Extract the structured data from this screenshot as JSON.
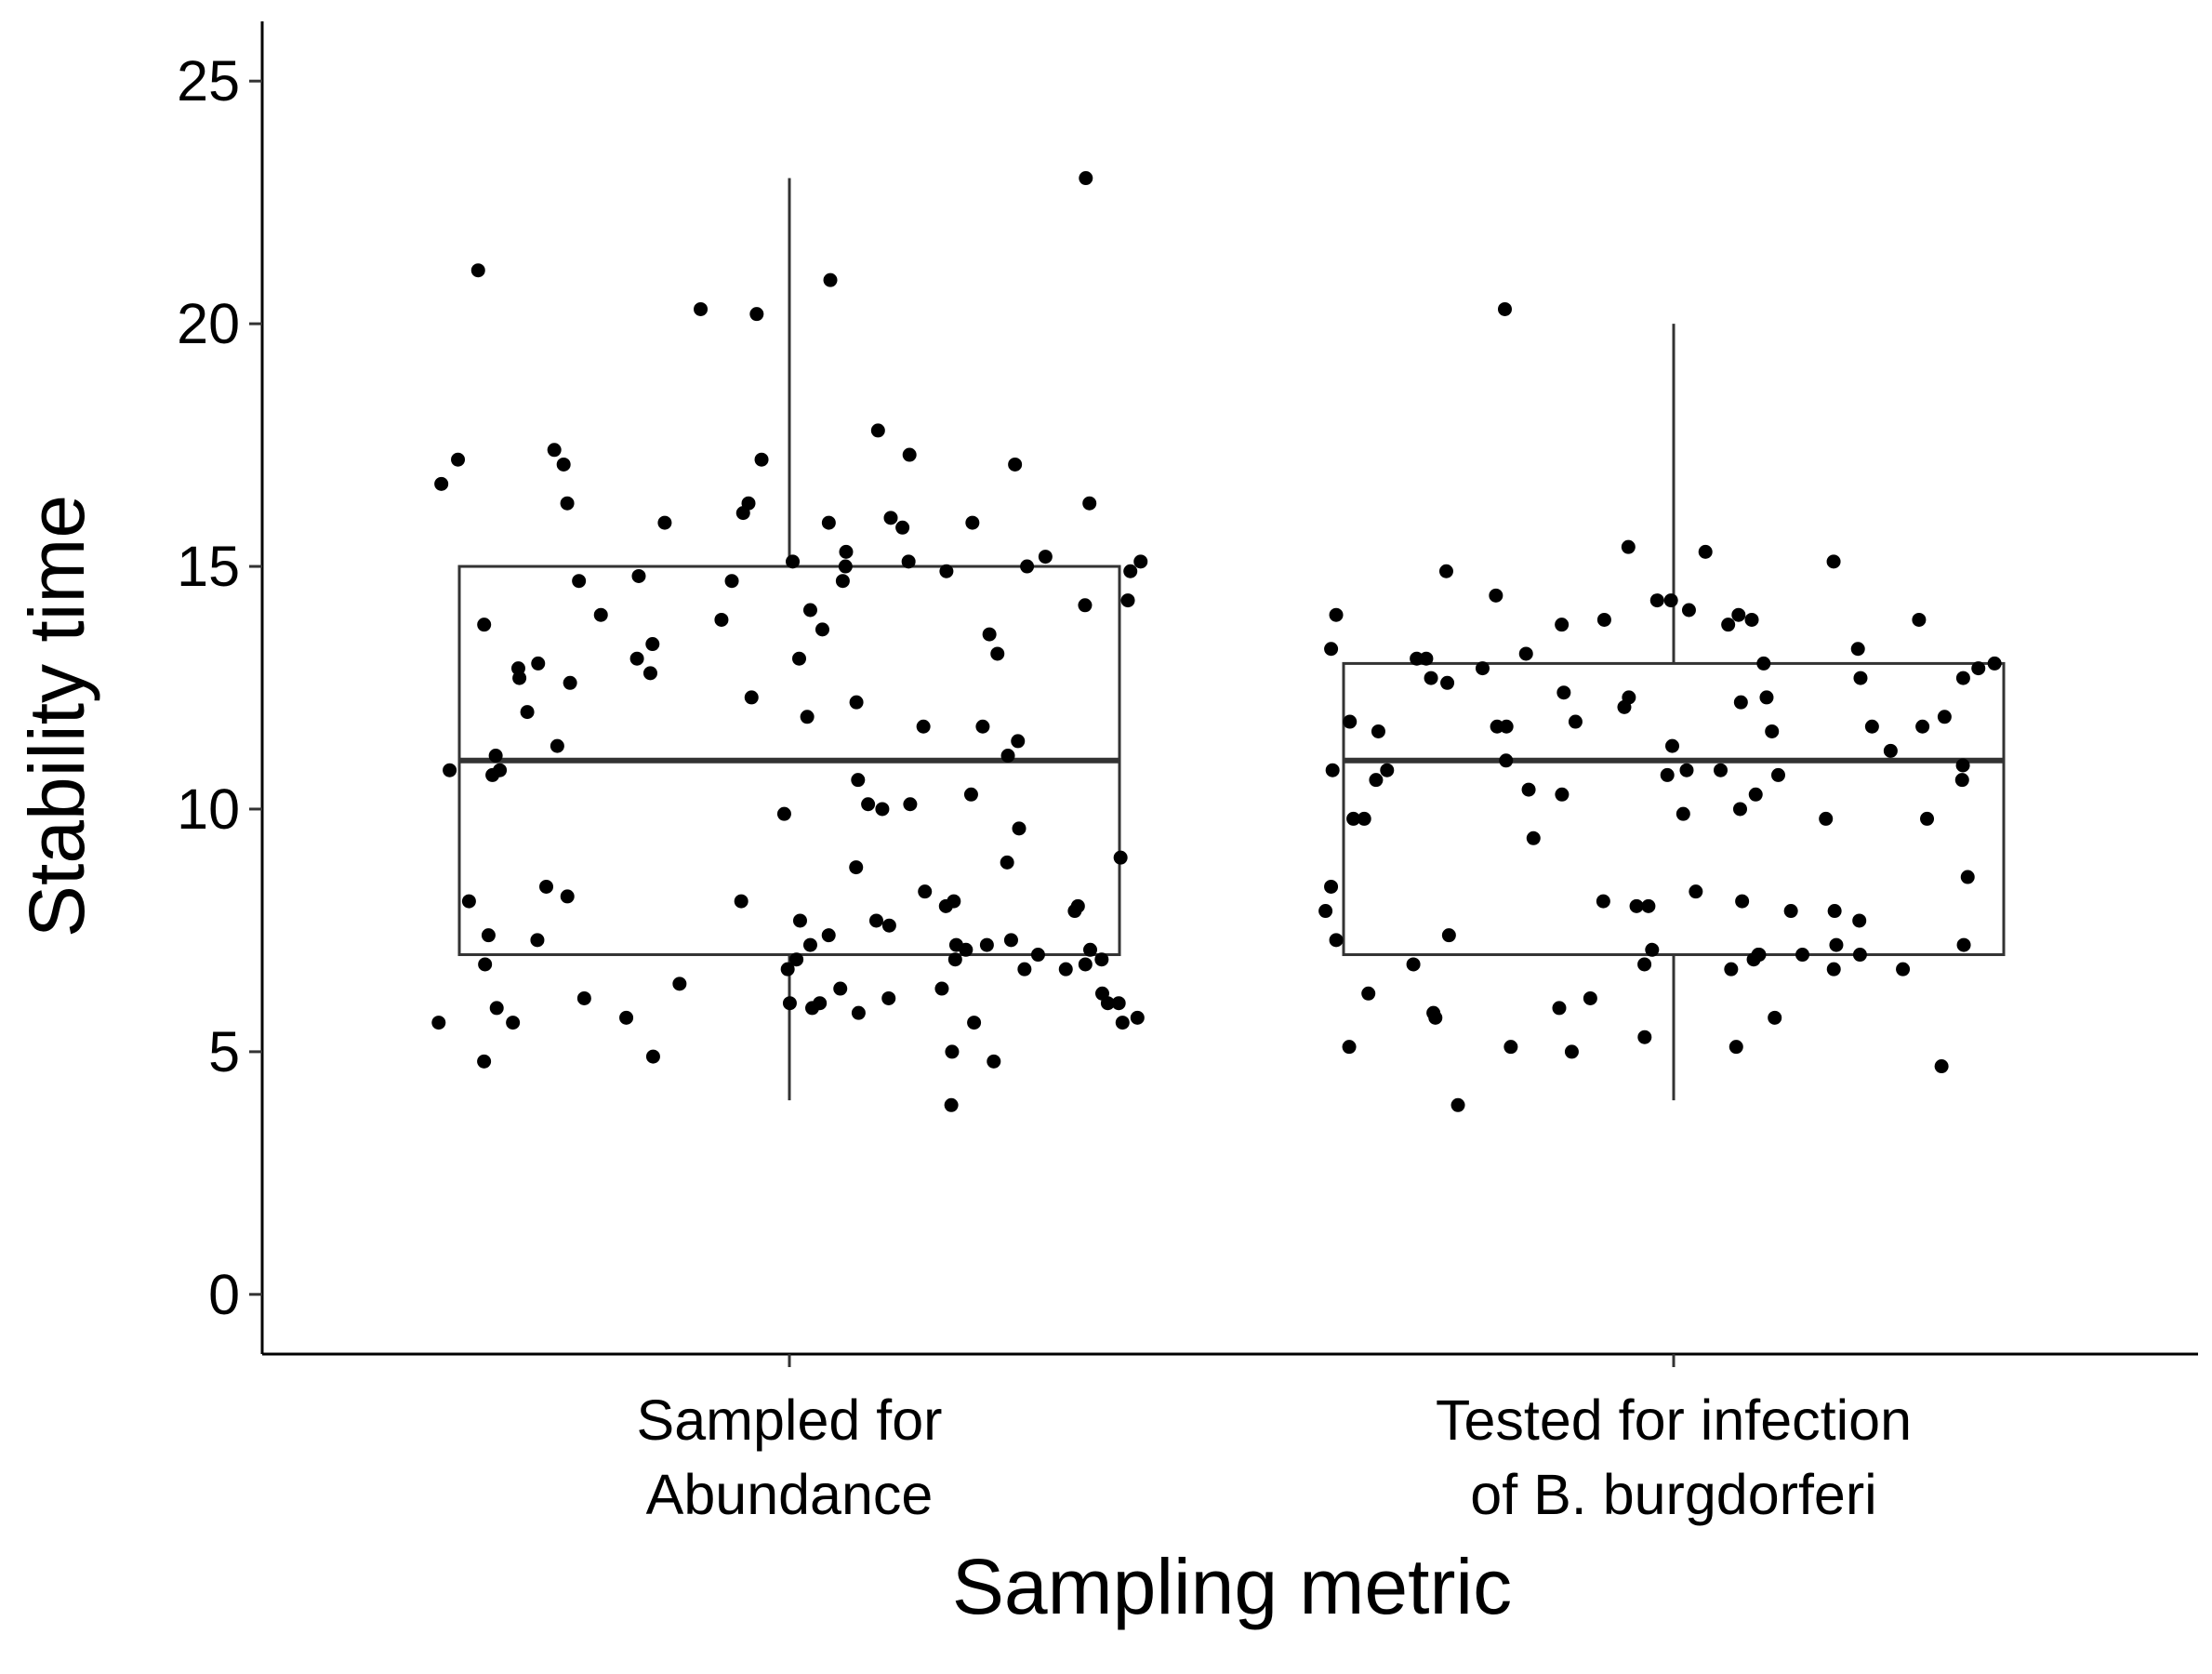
{
  "chart_data": {
    "type": "box",
    "x_label": "Sampling metric",
    "y_label": "Stability time",
    "categories": [
      "Sampled for\nAbundance",
      "Tested for infection\nof B. burgdorferi"
    ],
    "boxes": [
      {
        "min": 4,
        "q1": 7,
        "median": 11,
        "q3": 15,
        "max": 23
      },
      {
        "min": 4,
        "q1": 7,
        "median": 11,
        "q3": 13,
        "max": 20
      }
    ],
    "points": [
      [
        23.0,
        21.1,
        20.9,
        20.3,
        20.2,
        17.8,
        17.4,
        17.3,
        17.2,
        17.2,
        17.1,
        17.1,
        16.7,
        16.3,
        16.3,
        16.3,
        16.1,
        16.0,
        15.9,
        15.9,
        15.9,
        15.8,
        15.3,
        15.2,
        15.1,
        15.1,
        15.1,
        15.0,
        15.0,
        14.9,
        14.9,
        14.8,
        14.7,
        14.7,
        14.7,
        14.3,
        14.2,
        14.1,
        14.0,
        13.9,
        13.8,
        13.7,
        13.6,
        13.4,
        13.2,
        13.1,
        13.1,
        13.0,
        12.9,
        12.8,
        12.7,
        12.6,
        12.3,
        12.2,
        12.0,
        11.9,
        11.7,
        11.7,
        11.4,
        11.3,
        11.1,
        11.1,
        10.8,
        10.8,
        10.7,
        10.6,
        10.3,
        10.1,
        10.1,
        10.0,
        9.9,
        9.6,
        9.0,
        8.9,
        8.8,
        8.4,
        8.3,
        8.2,
        8.1,
        8.1,
        8.1,
        8.0,
        8.0,
        7.9,
        7.7,
        7.7,
        7.6,
        7.4,
        7.4,
        7.3,
        7.3,
        7.2,
        7.2,
        7.2,
        7.1,
        7.1,
        7.0,
        6.9,
        6.9,
        6.9,
        6.8,
        6.8,
        6.7,
        6.7,
        6.7,
        6.4,
        6.3,
        6.3,
        6.2,
        6.1,
        6.1,
        6.0,
        6.0,
        6.0,
        6.0,
        5.9,
        5.9,
        5.8,
        5.7,
        5.7,
        5.6,
        5.6,
        5.6,
        5.6,
        5.0,
        4.9,
        4.8,
        4.8,
        3.9
      ],
      [
        20.3,
        15.4,
        15.3,
        15.1,
        14.9,
        14.4,
        14.3,
        14.3,
        14.1,
        14.0,
        14.0,
        13.9,
        13.9,
        13.9,
        13.8,
        13.8,
        13.3,
        13.3,
        13.2,
        13.1,
        13.1,
        13.0,
        13.0,
        12.9,
        12.9,
        12.7,
        12.7,
        12.7,
        12.6,
        12.4,
        12.3,
        12.3,
        12.2,
        12.1,
        11.9,
        11.8,
        11.8,
        11.7,
        11.7,
        11.7,
        11.7,
        11.6,
        11.6,
        11.3,
        11.2,
        11.0,
        10.9,
        10.8,
        10.8,
        10.8,
        10.8,
        10.7,
        10.7,
        10.6,
        10.6,
        10.4,
        10.3,
        10.3,
        10.0,
        9.9,
        9.8,
        9.8,
        9.8,
        9.8,
        9.4,
        8.6,
        8.4,
        8.3,
        8.1,
        8.1,
        8.0,
        8.0,
        7.9,
        7.9,
        7.9,
        7.7,
        7.4,
        7.3,
        7.2,
        7.2,
        7.1,
        7.0,
        7.0,
        7.0,
        7.0,
        6.9,
        6.8,
        6.8,
        6.7,
        6.7,
        6.7,
        6.2,
        6.1,
        5.9,
        5.8,
        5.7,
        5.7,
        5.3,
        5.1,
        5.1,
        5.1,
        5.0,
        4.7,
        3.9
      ]
    ],
    "ylim": [
      -1.23,
      26.23
    ],
    "yticks": [
      0,
      5,
      10,
      15,
      20,
      25
    ],
    "box_color": "#333333",
    "point_color": "#000000"
  }
}
